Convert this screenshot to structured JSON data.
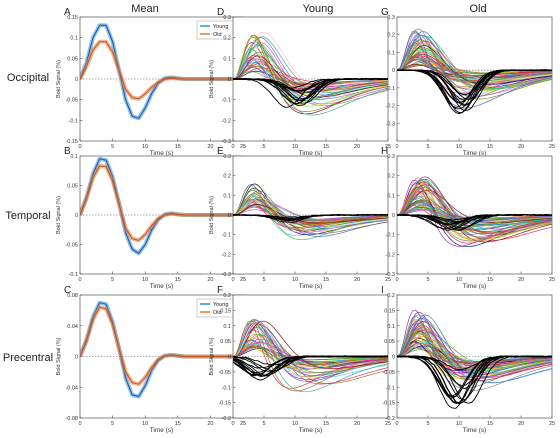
{
  "column_titles": [
    "Mean",
    "Young",
    "Old"
  ],
  "row_labels": [
    "Occipital",
    "Temporal",
    "Precentral"
  ],
  "panel_letters": [
    [
      "A",
      "D",
      "G"
    ],
    [
      "B",
      "E",
      "H"
    ],
    [
      "C",
      "F",
      "I"
    ]
  ],
  "ylabel": "Bold Signal (%)",
  "xlabel": "Time (s)",
  "legend": [
    "Young",
    "Old"
  ],
  "colors": {
    "young": "#2f8fd8",
    "young_line": "#1f4fa8",
    "old": "#e07a3a",
    "highlight": "#000000"
  },
  "chart_data": [
    {
      "id": "A",
      "type": "line",
      "region": "Occipital",
      "group": "Mean",
      "xlim": [
        0,
        25
      ],
      "ylim": [
        -0.15,
        0.15
      ],
      "xticks": [
        0,
        5,
        10,
        15,
        20,
        25
      ],
      "yticks": [
        -0.15,
        -0.1,
        -0.05,
        0,
        0.05,
        0.1,
        0.15
      ],
      "yticklabels": [
        "-0.15",
        "-0.1",
        "-0.05",
        "0",
        "0.05",
        "0.1",
        "0.15"
      ],
      "legend": [
        "Young",
        "Old"
      ],
      "series": [
        {
          "name": "Young",
          "x": [
            0,
            1,
            2,
            3,
            4,
            5,
            6,
            7,
            8,
            9,
            10,
            11,
            12,
            13,
            14,
            15,
            16,
            18,
            20,
            25
          ],
          "y": [
            0,
            0.04,
            0.1,
            0.13,
            0.13,
            0.09,
            0.02,
            -0.05,
            -0.09,
            -0.095,
            -0.07,
            -0.035,
            -0.01,
            0.002,
            0.004,
            0.002,
            0,
            0,
            0,
            0
          ]
        },
        {
          "name": "Old",
          "x": [
            0,
            1,
            2,
            3,
            4,
            5,
            6,
            7,
            8,
            9,
            10,
            11,
            12,
            13,
            14,
            15,
            16,
            18,
            20,
            25
          ],
          "y": [
            0,
            0.03,
            0.07,
            0.09,
            0.09,
            0.065,
            0.02,
            -0.025,
            -0.045,
            -0.048,
            -0.036,
            -0.02,
            -0.008,
            0,
            0.002,
            0.001,
            0,
            0,
            0,
            0
          ]
        }
      ]
    },
    {
      "id": "B",
      "type": "line",
      "region": "Temporal",
      "group": "Mean",
      "xlim": [
        0,
        25
      ],
      "ylim": [
        -0.1,
        0.1
      ],
      "xticks": [
        0,
        5,
        10,
        15,
        20,
        25
      ],
      "yticks": [
        -0.1,
        -0.05,
        0,
        0.05,
        0.1
      ],
      "yticklabels": [
        "-0.1",
        "-0.05",
        "0",
        "0.05",
        "0.1"
      ],
      "series": [
        {
          "name": "Young",
          "x": [
            0,
            1,
            2,
            3,
            4,
            5,
            6,
            7,
            8,
            9,
            10,
            11,
            12,
            13,
            14,
            15,
            16,
            18,
            20,
            25
          ],
          "y": [
            0,
            0.03,
            0.07,
            0.095,
            0.093,
            0.065,
            0.02,
            -0.03,
            -0.058,
            -0.065,
            -0.05,
            -0.025,
            -0.008,
            0.001,
            0.003,
            0.001,
            0,
            0,
            0,
            0
          ]
        },
        {
          "name": "Old",
          "x": [
            0,
            1,
            2,
            3,
            4,
            5,
            6,
            7,
            8,
            9,
            10,
            11,
            12,
            13,
            14,
            15,
            16,
            18,
            20,
            25
          ],
          "y": [
            0,
            0.028,
            0.063,
            0.083,
            0.082,
            0.058,
            0.018,
            -0.022,
            -0.04,
            -0.043,
            -0.033,
            -0.018,
            -0.006,
            0,
            0.002,
            0.001,
            0,
            0,
            0,
            0
          ]
        }
      ]
    },
    {
      "id": "C",
      "type": "line",
      "region": "Precentral",
      "group": "Mean",
      "xlim": [
        0,
        25
      ],
      "ylim": [
        -0.08,
        0.08
      ],
      "xticks": [
        0,
        5,
        10,
        15,
        20,
        25
      ],
      "yticks": [
        -0.08,
        -0.04,
        0,
        0.04,
        0.08
      ],
      "yticklabels": [
        "-0.08",
        "-0.04",
        "0",
        "0.04",
        "0.08"
      ],
      "legend": [
        "Young",
        "Old"
      ],
      "series": [
        {
          "name": "Young",
          "x": [
            0,
            1,
            2,
            3,
            4,
            5,
            6,
            7,
            8,
            9,
            10,
            11,
            12,
            13,
            14,
            15,
            16,
            18,
            20,
            25
          ],
          "y": [
            0,
            0.022,
            0.052,
            0.07,
            0.068,
            0.045,
            0.01,
            -0.028,
            -0.05,
            -0.052,
            -0.038,
            -0.018,
            -0.005,
            0.001,
            0.002,
            0.001,
            0,
            0,
            0,
            0
          ]
        },
        {
          "name": "Old",
          "x": [
            0,
            1,
            2,
            3,
            4,
            5,
            6,
            7,
            8,
            9,
            10,
            11,
            12,
            13,
            14,
            15,
            16,
            18,
            20,
            25
          ],
          "y": [
            0,
            0.02,
            0.048,
            0.064,
            0.062,
            0.042,
            0.01,
            -0.02,
            -0.034,
            -0.036,
            -0.027,
            -0.014,
            -0.004,
            0.001,
            0.002,
            0.001,
            0,
            0,
            0,
            0
          ]
        }
      ]
    },
    {
      "id": "D",
      "type": "line",
      "region": "Occipital",
      "group": "Young",
      "xlim": [
        0,
        25
      ],
      "ylim": [
        -0.3,
        0.3
      ],
      "xticks": [
        0,
        5,
        10,
        15,
        20,
        25
      ],
      "yticks": [
        -0.3,
        -0.2,
        -0.1,
        0,
        0.1,
        0.2,
        0.3
      ],
      "yticklabels": [
        "-0.3",
        "-0.2",
        "-0.1",
        "0",
        "0.1",
        "0.2",
        "0.3"
      ],
      "subjects": 40,
      "amp_range": [
        0.04,
        0.27
      ],
      "highlight": {
        "peak": 0.0,
        "trough": -0.17,
        "trough_time": 10
      }
    },
    {
      "id": "E",
      "type": "line",
      "region": "Temporal",
      "group": "Young",
      "xlim": [
        0,
        25
      ],
      "ylim": [
        -0.3,
        0.3
      ],
      "xticks": [
        0,
        5,
        10,
        15,
        20,
        25
      ],
      "yticks": [
        -0.3,
        -0.2,
        -0.1,
        0,
        0.1,
        0.2,
        0.3
      ],
      "yticklabels": [
        "-0.3",
        "-0.2",
        "-0.1",
        "0",
        "0.1",
        "0.2",
        "0.3"
      ],
      "subjects": 40,
      "amp_range": [
        0.03,
        0.2
      ]
    },
    {
      "id": "F",
      "type": "line",
      "region": "Precentral",
      "group": "Young",
      "xlim": [
        0,
        25
      ],
      "ylim": [
        -0.2,
        0.2
      ],
      "xticks": [
        0,
        5,
        10,
        15,
        20,
        25
      ],
      "yticks": [
        -0.2,
        -0.15,
        -0.1,
        -0.05,
        0,
        0.05,
        0.1,
        0.15,
        0.2
      ],
      "yticklabels": [
        "-0.2",
        "-0.15",
        "-0.1",
        "-0.05",
        "0",
        "0.05",
        "0.1",
        "0.15",
        "0.2"
      ],
      "subjects": 40,
      "amp_range": [
        0.03,
        0.16
      ],
      "highlight": {
        "peak": 0.0,
        "trough": -0.09,
        "trough_time": 5
      }
    },
    {
      "id": "G",
      "type": "line",
      "region": "Occipital",
      "group": "Old",
      "xlim": [
        0,
        25
      ],
      "ylim": [
        -0.4,
        0.3
      ],
      "xticks": [
        0,
        5,
        10,
        15,
        20,
        25
      ],
      "yticks": [
        -0.3,
        -0.2,
        -0.1,
        0,
        0.1,
        0.2,
        0.3
      ],
      "yticklabels": [
        "-0.3",
        "-0.2",
        "-0.1",
        "0",
        "0.1",
        "0.2",
        "0.3"
      ],
      "subjects": 55,
      "amp_range": [
        0.03,
        0.28
      ],
      "highlight": {
        "peak": 0.0,
        "trough": -0.29,
        "trough_time": 10
      }
    },
    {
      "id": "H",
      "type": "line",
      "region": "Temporal",
      "group": "Old",
      "xlim": [
        0,
        25
      ],
      "ylim": [
        -0.3,
        0.3
      ],
      "xticks": [
        0,
        5,
        10,
        15,
        20,
        25
      ],
      "yticks": [
        -0.3,
        -0.2,
        -0.1,
        0,
        0.1,
        0.2,
        0.3
      ],
      "yticklabels": [
        "-0.3",
        "-0.2",
        "-0.1",
        "0",
        "0.1",
        "0.2",
        "0.3"
      ],
      "subjects": 55,
      "amp_range": [
        0.03,
        0.25
      ],
      "highlight": {
        "peak": 0.0,
        "trough": -0.08,
        "trough_time": 9
      }
    },
    {
      "id": "I",
      "type": "line",
      "region": "Precentral",
      "group": "Old",
      "xlim": [
        0,
        25
      ],
      "ylim": [
        -0.2,
        0.2
      ],
      "xticks": [
        0,
        5,
        10,
        15,
        20,
        25
      ],
      "yticks": [
        -0.2,
        -0.15,
        -0.1,
        -0.05,
        0,
        0.05,
        0.1,
        0.15,
        0.2
      ],
      "yticklabels": [
        "-0.2",
        "-0.15",
        "-0.1",
        "-0.05",
        "0",
        "0.05",
        "0.1",
        "0.15",
        "0.2"
      ],
      "subjects": 55,
      "amp_range": [
        0.03,
        0.18
      ],
      "highlight": {
        "peak": 0.0,
        "trough": -0.17,
        "trough_time": 10
      }
    }
  ]
}
